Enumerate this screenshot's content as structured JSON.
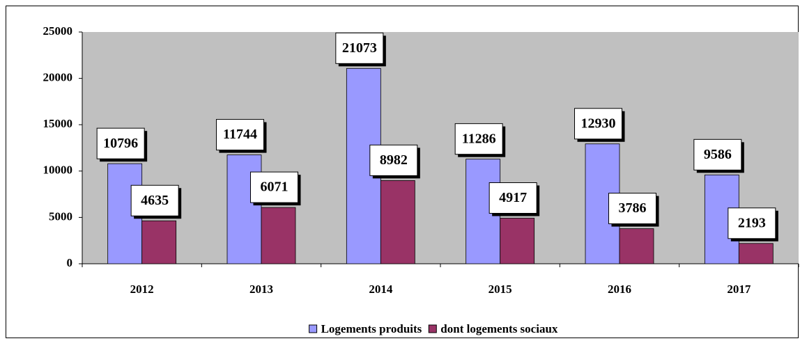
{
  "chart_data": {
    "type": "bar",
    "categories": [
      "2012",
      "2013",
      "2014",
      "2015",
      "2016",
      "2017"
    ],
    "series": [
      {
        "name": "Logements produits",
        "color": "#9999ff",
        "values": [
          10796,
          11744,
          21073,
          11286,
          12930,
          9586
        ]
      },
      {
        "name": "dont logements sociaux",
        "color": "#993366",
        "values": [
          4635,
          6071,
          8982,
          4917,
          3786,
          2193
        ]
      }
    ],
    "ylim": [
      0,
      25000
    ],
    "yticks": [
      0,
      5000,
      10000,
      15000,
      20000,
      25000
    ],
    "plot_background": "#c0c0c0",
    "legend": "bottom"
  }
}
